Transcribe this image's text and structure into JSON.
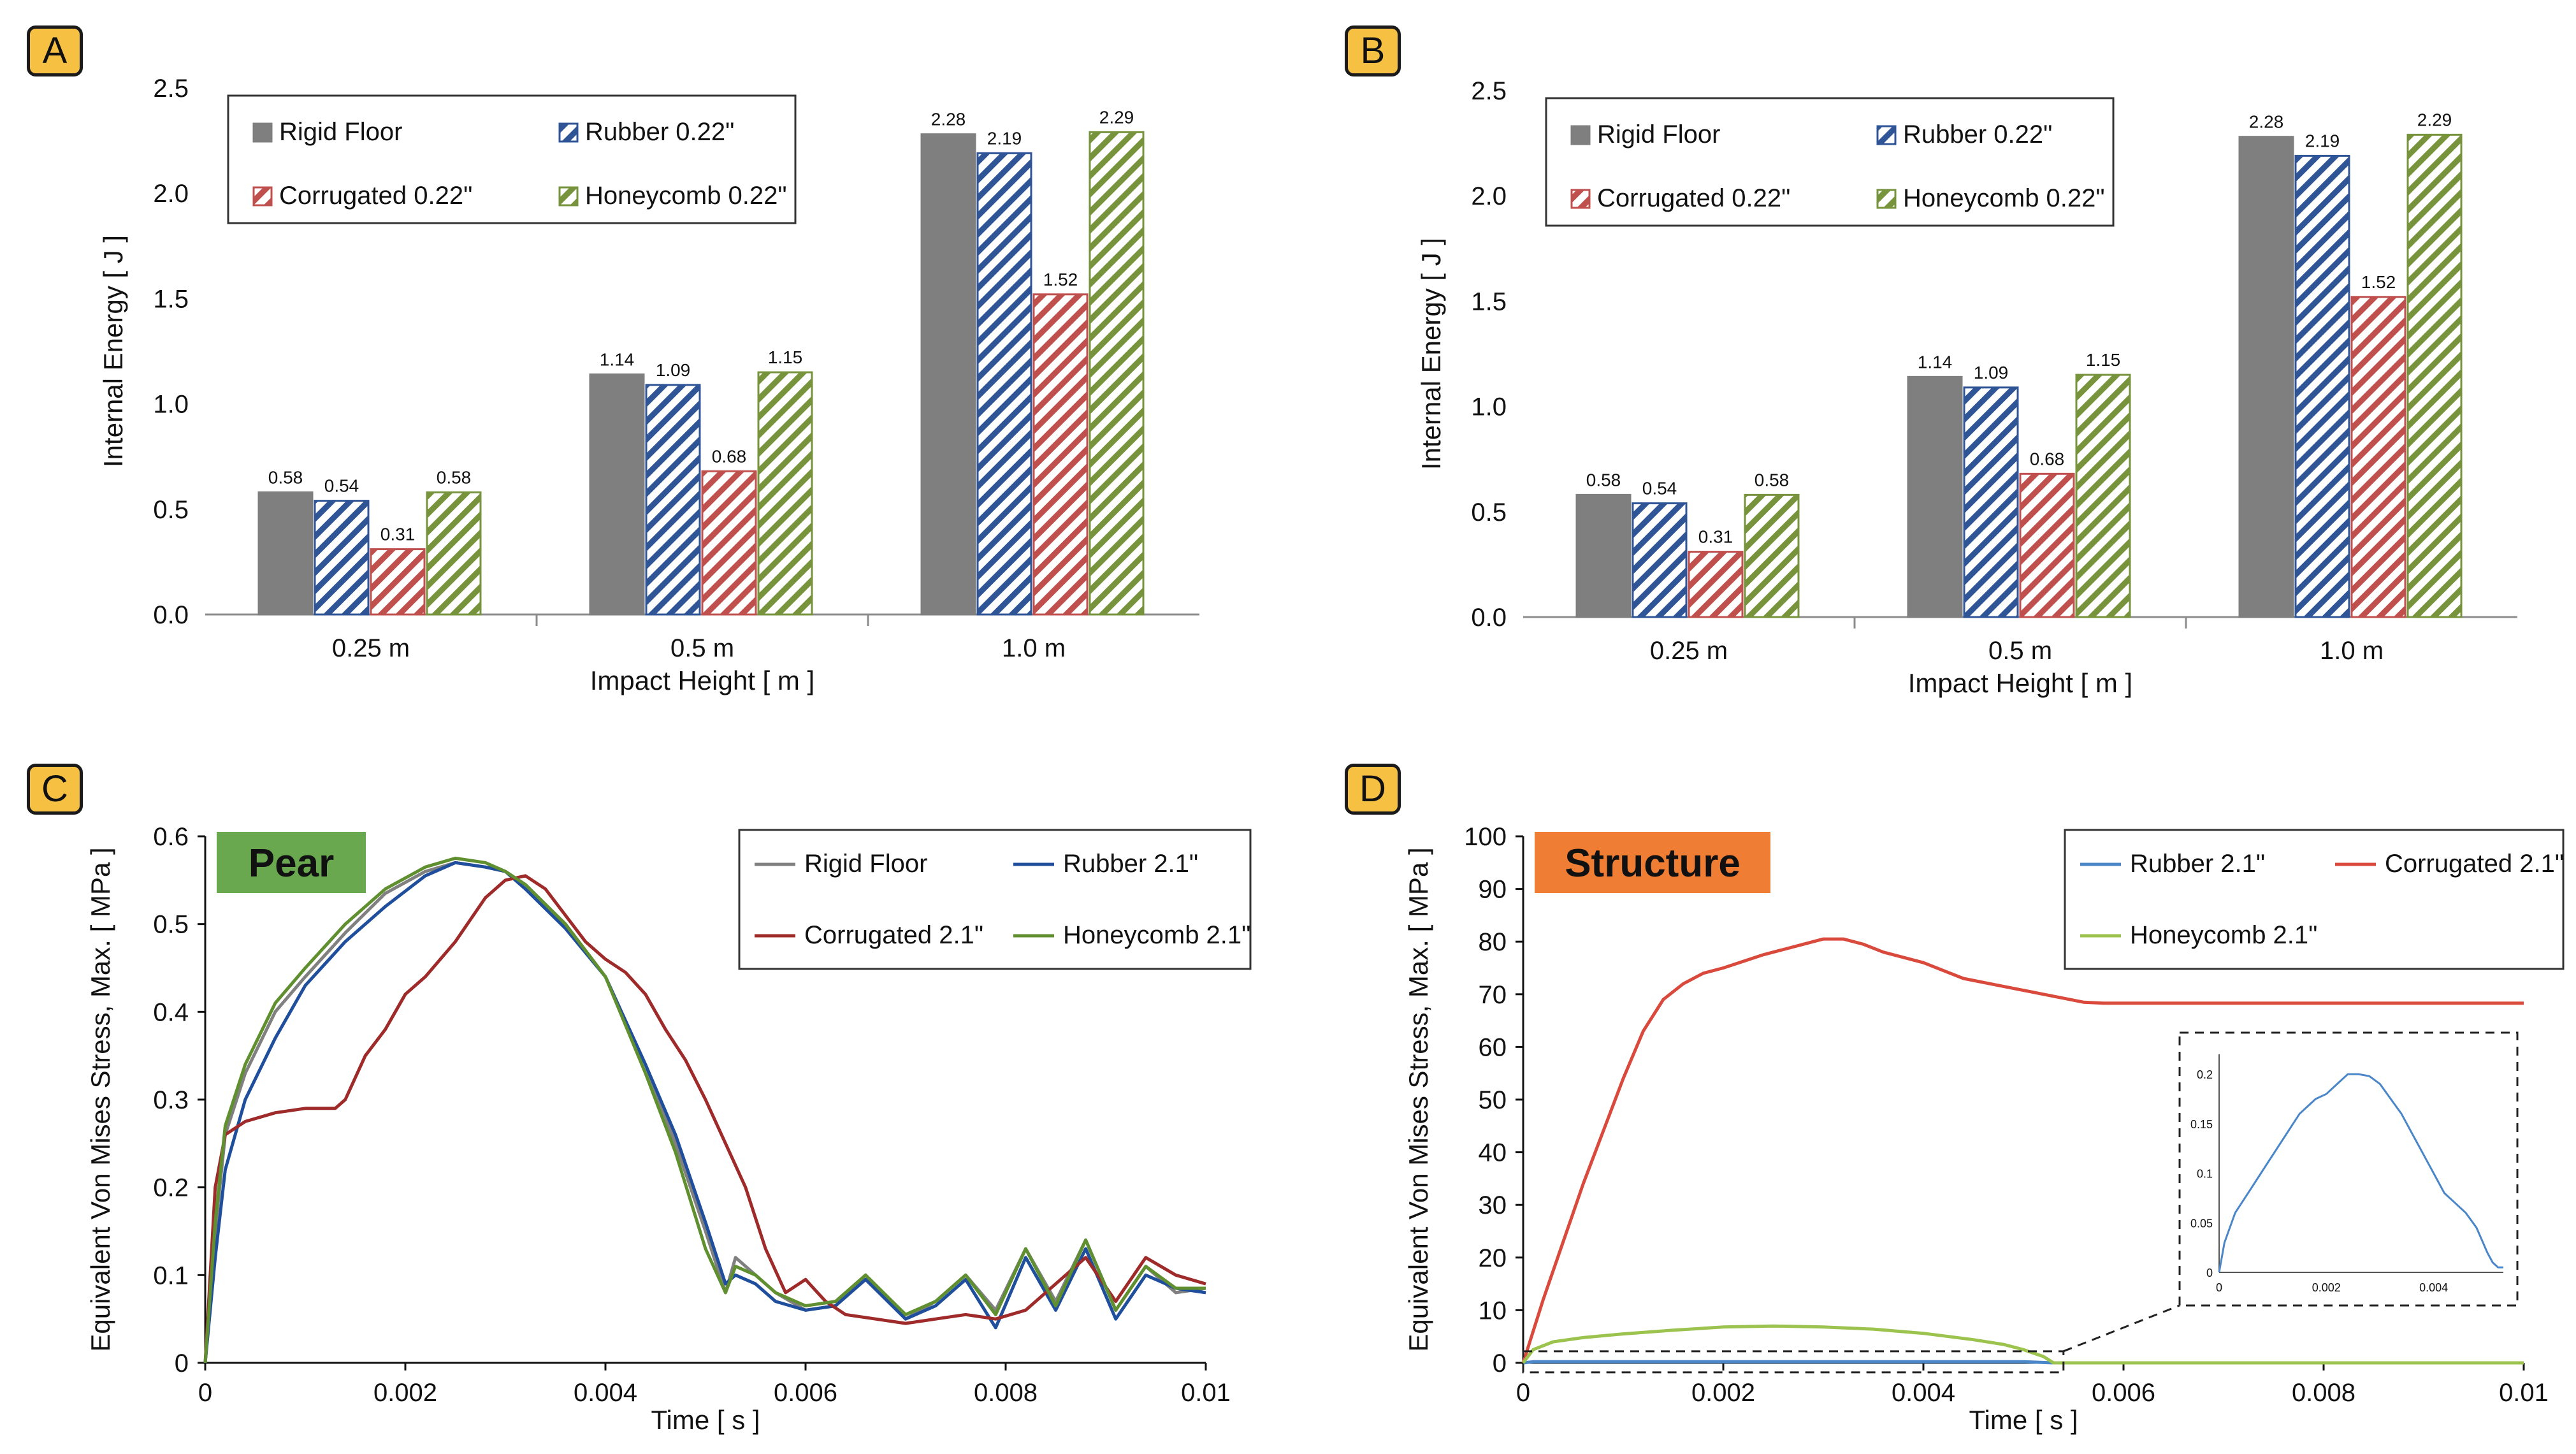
{
  "panels": [
    {
      "label": "A"
    },
    {
      "label": "B"
    },
    {
      "label": "C"
    },
    {
      "label": "D"
    }
  ],
  "colors": {
    "rigid": "#7f7f7f",
    "rubber": "#2f5597",
    "corrugated": "#c0504d",
    "honeycomb": "#77933c",
    "rubber_line": "#1f4e9c",
    "corrugated_line": "#9e2a2a",
    "honeycomb_line": "#5f8f2f",
    "rigid_line": "#808080",
    "d_rubber": "#4a86c8",
    "d_corrugated": "#d94a3c",
    "d_honeycomb": "#9bc34d",
    "pear_tag": "#6aa84f",
    "structure_tag": "#ef7d34",
    "panel_tag": "#f6c143"
  },
  "chart_data": [
    {
      "id": "A",
      "type": "bar",
      "title": "",
      "xlabel": "Impact Height [ m ]",
      "ylabel": "Internal Energy [ J ]",
      "categories": [
        "0.25 m",
        "0.5 m",
        "1.0 m"
      ],
      "ylim": [
        0,
        2.5
      ],
      "yticks": [
        "0.0",
        "0.5",
        "1.0",
        "1.5",
        "2.0",
        "2.5"
      ],
      "legend_position": "top-left",
      "series": [
        {
          "name": "Rigid Floor",
          "values": [
            0.58,
            1.14,
            2.28
          ],
          "labels": [
            "0.58",
            "1.14",
            "2.28"
          ],
          "fill": "solid",
          "color": "#7f7f7f"
        },
        {
          "name": "Rubber 0.22\"",
          "values": [
            0.54,
            1.09,
            2.19
          ],
          "labels": [
            "0.54",
            "1.09",
            "2.19"
          ],
          "fill": "hatch",
          "color": "#2f5597"
        },
        {
          "name": "Corrugated 0.22\"",
          "values": [
            0.31,
            0.68,
            1.52
          ],
          "labels": [
            "0.31",
            "0.68",
            "1.52"
          ],
          "fill": "hatch",
          "color": "#c0504d"
        },
        {
          "name": "Honeycomb 0.22\"",
          "values": [
            0.58,
            1.15,
            2.29
          ],
          "labels": [
            "0.58",
            "1.15",
            "2.29"
          ],
          "fill": "hatch",
          "color": "#77933c"
        }
      ]
    },
    {
      "id": "B",
      "type": "bar",
      "title": "",
      "xlabel": "Impact Height [ m ]",
      "ylabel": "Internal Energy [ J ]",
      "categories": [
        "0.25 m",
        "0.5 m",
        "1.0 m"
      ],
      "ylim": [
        0,
        2.5
      ],
      "yticks": [
        "0.0",
        "0.5",
        "1.0",
        "1.5",
        "2.0",
        "2.5"
      ],
      "legend_position": "top-left",
      "series": [
        {
          "name": "Rigid Floor",
          "values": [
            0.58,
            1.14,
            2.28
          ],
          "labels": [
            "0.58",
            "1.14",
            "2.28"
          ],
          "fill": "solid",
          "color": "#7f7f7f"
        },
        {
          "name": "Rubber 0.22\"",
          "values": [
            0.54,
            1.09,
            2.19
          ],
          "labels": [
            "0.54",
            "1.09",
            "2.19"
          ],
          "fill": "hatch",
          "color": "#2f5597"
        },
        {
          "name": "Corrugated 0.22\"",
          "values": [
            0.31,
            0.68,
            1.52
          ],
          "labels": [
            "0.31",
            "0.68",
            "1.52"
          ],
          "fill": "hatch",
          "color": "#c0504d"
        },
        {
          "name": "Honeycomb 0.22\"",
          "values": [
            0.58,
            1.15,
            2.29
          ],
          "labels": [
            "0.58",
            "1.15",
            "2.29"
          ],
          "fill": "hatch",
          "color": "#77933c"
        }
      ]
    },
    {
      "id": "C",
      "type": "line",
      "tag": "Pear",
      "xlabel": "Time [ s ]",
      "ylabel": "Equivalent Von Mises Stress, Max. [ MPa ]",
      "xlim": [
        0,
        0.01
      ],
      "ylim": [
        0,
        0.6
      ],
      "xticks": [
        "0",
        "0.002",
        "0.004",
        "0.006",
        "0.008",
        "0.01"
      ],
      "yticks": [
        "0",
        "0.1",
        "0.2",
        "0.3",
        "0.4",
        "0.5",
        "0.6"
      ],
      "legend_position": "top-right",
      "series": [
        {
          "name": "Rigid Floor",
          "color": "#808080",
          "x": [
            0,
            0.0001,
            0.0002,
            0.0004,
            0.0007,
            0.001,
            0.0014,
            0.0018,
            0.0022,
            0.0025,
            0.0028,
            0.003,
            0.0032,
            0.0036,
            0.004,
            0.0044,
            0.0047,
            0.005,
            0.0052,
            0.0053,
            0.0055,
            0.0057,
            0.006,
            0.0063,
            0.0066,
            0.007,
            0.0073,
            0.0076,
            0.0079,
            0.0082,
            0.0085,
            0.0088,
            0.0091,
            0.0094,
            0.0097,
            0.01
          ],
          "y": [
            0,
            0.15,
            0.26,
            0.33,
            0.4,
            0.44,
            0.49,
            0.535,
            0.56,
            0.57,
            0.565,
            0.56,
            0.545,
            0.5,
            0.44,
            0.34,
            0.25,
            0.15,
            0.08,
            0.12,
            0.1,
            0.08,
            0.06,
            0.065,
            0.1,
            0.05,
            0.07,
            0.1,
            0.06,
            0.13,
            0.07,
            0.14,
            0.06,
            0.11,
            0.08,
            0.085
          ]
        },
        {
          "name": "Rubber 2.1\"",
          "color": "#1f4e9c",
          "x": [
            0,
            0.0001,
            0.0002,
            0.0004,
            0.0007,
            0.001,
            0.0014,
            0.0018,
            0.0022,
            0.0025,
            0.0028,
            0.003,
            0.0032,
            0.0036,
            0.004,
            0.0044,
            0.0047,
            0.005,
            0.0052,
            0.0053,
            0.0055,
            0.0057,
            0.006,
            0.0063,
            0.0066,
            0.007,
            0.0073,
            0.0076,
            0.0079,
            0.0082,
            0.0085,
            0.0088,
            0.0091,
            0.0094,
            0.0097,
            0.01
          ],
          "y": [
            0,
            0.12,
            0.22,
            0.3,
            0.37,
            0.43,
            0.48,
            0.52,
            0.555,
            0.57,
            0.565,
            0.56,
            0.54,
            0.495,
            0.44,
            0.34,
            0.26,
            0.16,
            0.09,
            0.1,
            0.09,
            0.07,
            0.06,
            0.065,
            0.095,
            0.05,
            0.065,
            0.095,
            0.04,
            0.12,
            0.06,
            0.13,
            0.05,
            0.1,
            0.085,
            0.08
          ]
        },
        {
          "name": "Corrugated 2.1\"",
          "color": "#9e2a2a",
          "x": [
            0,
            0.0001,
            0.0002,
            0.0004,
            0.0007,
            0.001,
            0.0013,
            0.0014,
            0.0016,
            0.0018,
            0.002,
            0.0022,
            0.0025,
            0.0028,
            0.003,
            0.0032,
            0.0034,
            0.0036,
            0.0038,
            0.004,
            0.0042,
            0.0044,
            0.0046,
            0.0048,
            0.005,
            0.0052,
            0.0054,
            0.0056,
            0.0058,
            0.006,
            0.0062,
            0.0064,
            0.0067,
            0.007,
            0.0073,
            0.0076,
            0.0079,
            0.0082,
            0.0085,
            0.0088,
            0.0091,
            0.0094,
            0.0097,
            0.01
          ],
          "y": [
            0,
            0.2,
            0.26,
            0.275,
            0.285,
            0.29,
            0.29,
            0.3,
            0.35,
            0.38,
            0.42,
            0.44,
            0.48,
            0.53,
            0.55,
            0.555,
            0.54,
            0.51,
            0.48,
            0.46,
            0.445,
            0.42,
            0.38,
            0.345,
            0.3,
            0.25,
            0.2,
            0.13,
            0.08,
            0.095,
            0.07,
            0.055,
            0.05,
            0.045,
            0.05,
            0.055,
            0.05,
            0.06,
            0.09,
            0.12,
            0.07,
            0.12,
            0.1,
            0.09
          ]
        },
        {
          "name": "Honeycomb 2.1\"",
          "color": "#5f8f2f",
          "x": [
            0,
            0.0001,
            0.0002,
            0.0004,
            0.0007,
            0.001,
            0.0014,
            0.0018,
            0.0022,
            0.0025,
            0.0028,
            0.003,
            0.0032,
            0.0036,
            0.004,
            0.0044,
            0.0047,
            0.005,
            0.0052,
            0.0053,
            0.0055,
            0.0057,
            0.006,
            0.0063,
            0.0066,
            0.007,
            0.0073,
            0.0076,
            0.0079,
            0.0082,
            0.0085,
            0.0088,
            0.0091,
            0.0094,
            0.0097,
            0.01
          ],
          "y": [
            0,
            0.16,
            0.27,
            0.34,
            0.41,
            0.45,
            0.5,
            0.54,
            0.565,
            0.575,
            0.57,
            0.56,
            0.545,
            0.5,
            0.44,
            0.33,
            0.24,
            0.13,
            0.08,
            0.11,
            0.1,
            0.08,
            0.065,
            0.07,
            0.1,
            0.055,
            0.07,
            0.1,
            0.055,
            0.13,
            0.065,
            0.14,
            0.06,
            0.11,
            0.085,
            0.085
          ]
        }
      ]
    },
    {
      "id": "D",
      "type": "line",
      "tag": "Structure",
      "xlabel": "Time [ s ]",
      "ylabel": "Equivalent Von Mises Stress, Max. [ MPa ]",
      "xlim": [
        0,
        0.01
      ],
      "ylim": [
        0,
        100
      ],
      "xticks": [
        "0",
        "0.002",
        "0.004",
        "0.006",
        "0.008",
        "0.01"
      ],
      "yticks": [
        "0",
        "10",
        "20",
        "30",
        "40",
        "50",
        "60",
        "70",
        "80",
        "90",
        "100"
      ],
      "legend_position": "top-right",
      "series": [
        {
          "name": "Rubber 2.1\"",
          "color": "#4a86c8",
          "x": [
            0,
            0.0001,
            0.005,
            0.0053
          ],
          "y": [
            0,
            0.2,
            0.2,
            0
          ]
        },
        {
          "name": "Corrugated 2.1\"",
          "color": "#d94a3c",
          "x": [
            0,
            0.0002,
            0.0004,
            0.0006,
            0.0008,
            0.001,
            0.0012,
            0.0014,
            0.0016,
            0.0018,
            0.002,
            0.0024,
            0.0028,
            0.003,
            0.0032,
            0.0034,
            0.0036,
            0.004,
            0.0044,
            0.0048,
            0.0052,
            0.0056,
            0.0058,
            0.006,
            0.007,
            0.008,
            0.009,
            0.01
          ],
          "y": [
            0,
            12,
            23,
            34,
            44,
            54,
            63,
            69,
            72,
            74,
            75,
            77.5,
            79.5,
            80.5,
            80.5,
            79.5,
            78,
            76,
            73,
            71.5,
            70,
            68.5,
            68.3,
            68.3,
            68.3,
            68.3,
            68.3,
            68.3
          ]
        },
        {
          "name": "Honeycomb 2.1\"",
          "color": "#9bc34d",
          "x": [
            0,
            0.0001,
            0.0003,
            0.0006,
            0.001,
            0.0015,
            0.002,
            0.0025,
            0.003,
            0.0035,
            0.004,
            0.0045,
            0.0048,
            0.005,
            0.0052,
            0.0053,
            0.006,
            0.007,
            0.008,
            0.009,
            0.01
          ],
          "y": [
            0,
            2.5,
            4,
            4.8,
            5.5,
            6.2,
            6.8,
            7,
            6.8,
            6.4,
            5.6,
            4.4,
            3.5,
            2.5,
            1.2,
            0,
            0,
            0,
            0,
            0,
            0
          ]
        }
      ],
      "inset": {
        "series": "Rubber 2.1\"",
        "xlim": [
          0,
          0.0053
        ],
        "ylim": [
          0,
          0.22
        ],
        "xticks": [
          "0",
          "0.002",
          "0.004"
        ],
        "yticks": [
          "0",
          "0.05",
          "0.1",
          "0.15",
          "0.2"
        ],
        "x": [
          0,
          0.0001,
          0.0003,
          0.0006,
          0.0009,
          0.0012,
          0.0015,
          0.0018,
          0.002,
          0.0022,
          0.0024,
          0.0026,
          0.0028,
          0.003,
          0.0032,
          0.0034,
          0.0036,
          0.0038,
          0.004,
          0.0042,
          0.0044,
          0.0046,
          0.0048,
          0.005,
          0.0051,
          0.0052,
          0.0053
        ],
        "y": [
          0,
          0.03,
          0.06,
          0.085,
          0.11,
          0.135,
          0.16,
          0.175,
          0.18,
          0.19,
          0.2,
          0.2,
          0.198,
          0.19,
          0.175,
          0.16,
          0.14,
          0.12,
          0.1,
          0.08,
          0.07,
          0.06,
          0.045,
          0.02,
          0.01,
          0.005,
          0.005
        ]
      }
    }
  ]
}
